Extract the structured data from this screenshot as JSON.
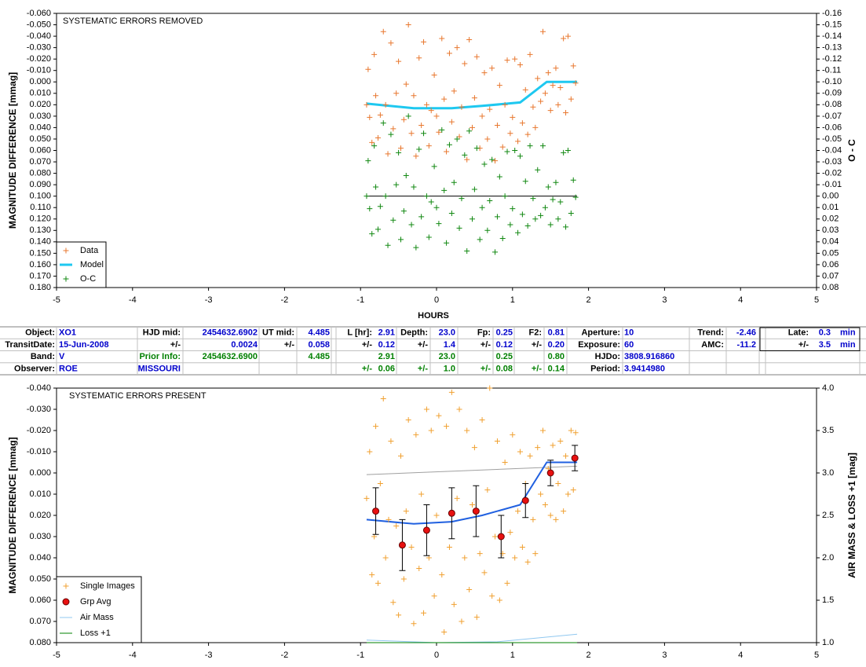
{
  "chart_data": [
    {
      "type": "scatter",
      "title": "SYSTEMATIC ERRORS REMOVED",
      "xlabel": "HOURS",
      "ylabel": "MAGNITUDE DIFFERENCE [mmag]",
      "y2label": "O - C",
      "xlim": [
        -5,
        5
      ],
      "xticks": [
        -5,
        -4,
        -3,
        -2,
        -1,
        0,
        1,
        2,
        3,
        4,
        5
      ],
      "ylim": [
        -0.06,
        0.18
      ],
      "y_reversed": true,
      "yticks": [
        {
          "value": -0.06,
          "label": "-0.060"
        },
        {
          "value": -0.05,
          "label": "-0.050"
        },
        {
          "value": -0.04,
          "label": "-0.040"
        },
        {
          "value": -0.03,
          "label": "-0.030"
        },
        {
          "value": -0.02,
          "label": "-0.020"
        },
        {
          "value": -0.01,
          "label": "-0.010"
        },
        {
          "value": 0,
          "label": "0.000"
        },
        {
          "value": 0.01,
          "label": "0.010"
        },
        {
          "value": 0.02,
          "label": "0.020"
        },
        {
          "value": 0.03,
          "label": "0.030"
        },
        {
          "value": 0.04,
          "label": "0.040"
        },
        {
          "value": 0.05,
          "label": "0.050"
        },
        {
          "value": 0.06,
          "label": "0.060"
        },
        {
          "value": 0.07,
          "label": "0.070"
        },
        {
          "value": 0.08,
          "label": "0.080"
        },
        {
          "value": 0.09,
          "label": "0.090"
        },
        {
          "value": 0.1,
          "label": "0.100"
        },
        {
          "value": 0.11,
          "label": "0.110"
        },
        {
          "value": 0.12,
          "label": "0.120"
        },
        {
          "value": 0.13,
          "label": "0.130"
        },
        {
          "value": 0.14,
          "label": "0.140"
        },
        {
          "value": 0.15,
          "label": "0.150"
        },
        {
          "value": 0.16,
          "label": "0.160"
        },
        {
          "value": 0.17,
          "label": "0.170"
        },
        {
          "value": 0.18,
          "label": "0.180"
        }
      ],
      "y2lim": [
        -0.16,
        0.08
      ],
      "y2_reversed": true,
      "y2ticks": [
        -0.16,
        -0.15,
        -0.14,
        -0.13,
        -0.12,
        -0.11,
        {
          "value": -0.1,
          "label": "-0.10"
        },
        -0.09,
        -0.08,
        -0.07,
        -0.06,
        -0.05,
        -0.04,
        -0.03,
        -0.02,
        -0.01,
        {
          "value": 0,
          "label": "0.00"
        },
        0.01,
        0.02,
        0.03,
        0.04,
        0.05,
        0.06,
        0.07,
        0.08
      ],
      "grid": false,
      "legend": "lower left",
      "series": [
        {
          "name": "Data",
          "color": "#e8772e",
          "marker": "plus",
          "x": [
            -0.92,
            -0.9,
            -0.88,
            -0.85,
            -0.82,
            -0.8,
            -0.77,
            -0.74,
            -0.7,
            -0.67,
            -0.64,
            -0.6,
            -0.57,
            -0.53,
            -0.5,
            -0.47,
            -0.43,
            -0.4,
            -0.37,
            -0.33,
            -0.3,
            -0.27,
            -0.23,
            -0.2,
            -0.17,
            -0.13,
            -0.1,
            -0.07,
            -0.03,
            0.0,
            0.03,
            0.07,
            0.1,
            0.13,
            0.17,
            0.2,
            0.23,
            0.27,
            0.3,
            0.33,
            0.37,
            0.4,
            0.43,
            0.47,
            0.5,
            0.53,
            0.57,
            0.6,
            0.63,
            0.67,
            0.7,
            0.73,
            0.77,
            0.8,
            0.83,
            0.87,
            0.9,
            0.93,
            0.97,
            1.0,
            1.03,
            1.07,
            1.1,
            1.13,
            1.17,
            1.2,
            1.23,
            1.27,
            1.3,
            1.33,
            1.37,
            1.4,
            1.43,
            1.47,
            1.5,
            1.53,
            1.57,
            1.6,
            1.63,
            1.67,
            1.7,
            1.73,
            1.77,
            1.8,
            1.83
          ],
          "values": [
            0.02,
            -0.011,
            0.031,
            0.053,
            -0.024,
            0.012,
            0.049,
            0.029,
            -0.044,
            0.02,
            0.063,
            -0.034,
            0.041,
            0.01,
            -0.018,
            0.058,
            0.033,
            0.002,
            -0.05,
            0.045,
            0.012,
            0.065,
            -0.021,
            0.038,
            -0.035,
            0.02,
            0.056,
            0.025,
            -0.006,
            0.03,
            0.044,
            -0.038,
            0.015,
            0.061,
            -0.025,
            0.035,
            0.008,
            -0.03,
            0.048,
            0.022,
            -0.016,
            0.068,
            -0.037,
            0.04,
            0.014,
            -0.022,
            0.058,
            0.03,
            -0.008,
            0.05,
            0.024,
            -0.012,
            0.069,
            0.038,
            0.003,
            0.057,
            0.02,
            -0.019,
            0.045,
            0.031,
            -0.02,
            0.052,
            -0.015,
            0.036,
            0.007,
            0.046,
            -0.024,
            0.022,
            0.04,
            -0.003,
            0.017,
            -0.044,
            0.01,
            -0.008,
            0.025,
            0.003,
            -0.012,
            0.02,
            0.005,
            -0.038,
            0.027,
            -0.04,
            0.015,
            -0.014,
            0.001
          ]
        },
        {
          "name": "Model",
          "color": "#1ec8f0",
          "marker": "line",
          "width": 3,
          "x": [
            -0.92,
            -0.3,
            0.2,
            0.6,
            1.1,
            1.45,
            1.85
          ],
          "values": [
            0.019,
            0.023,
            0.023,
            0.021,
            0.018,
            0.0,
            0.0
          ]
        },
        {
          "name": "O-C",
          "color": "#118811",
          "marker": "plus",
          "axis": "y2",
          "x": [
            -0.92,
            -0.9,
            -0.88,
            -0.85,
            -0.82,
            -0.8,
            -0.77,
            -0.74,
            -0.7,
            -0.67,
            -0.64,
            -0.6,
            -0.57,
            -0.53,
            -0.5,
            -0.47,
            -0.43,
            -0.4,
            -0.37,
            -0.33,
            -0.3,
            -0.27,
            -0.23,
            -0.2,
            -0.17,
            -0.13,
            -0.1,
            -0.07,
            -0.03,
            0.0,
            0.03,
            0.07,
            0.1,
            0.13,
            0.17,
            0.2,
            0.23,
            0.27,
            0.3,
            0.33,
            0.37,
            0.4,
            0.43,
            0.47,
            0.5,
            0.53,
            0.57,
            0.6,
            0.63,
            0.67,
            0.7,
            0.73,
            0.77,
            0.8,
            0.83,
            0.87,
            0.9,
            0.93,
            0.97,
            1.0,
            1.03,
            1.07,
            1.1,
            1.13,
            1.17,
            1.2,
            1.23,
            1.27,
            1.3,
            1.33,
            1.37,
            1.4,
            1.43,
            1.47,
            1.5,
            1.53,
            1.57,
            1.6,
            1.63,
            1.67,
            1.7,
            1.73,
            1.77,
            1.8,
            1.83
          ],
          "values": [
            0.0,
            -0.031,
            0.011,
            0.033,
            -0.044,
            -0.008,
            0.029,
            0.009,
            -0.064,
            0.0,
            0.043,
            -0.054,
            0.021,
            -0.01,
            -0.038,
            0.038,
            0.013,
            -0.018,
            -0.07,
            0.025,
            -0.008,
            0.045,
            -0.041,
            0.018,
            -0.055,
            0.0,
            0.036,
            0.005,
            -0.026,
            0.01,
            0.024,
            -0.058,
            -0.005,
            0.041,
            -0.045,
            0.015,
            -0.012,
            -0.05,
            0.028,
            0.002,
            -0.036,
            0.048,
            -0.057,
            0.02,
            -0.006,
            -0.042,
            0.038,
            0.01,
            -0.028,
            0.03,
            0.004,
            -0.032,
            0.049,
            0.018,
            -0.017,
            0.037,
            0.0,
            -0.039,
            0.025,
            0.011,
            -0.04,
            0.032,
            -0.035,
            0.016,
            -0.013,
            0.026,
            -0.044,
            0.002,
            0.02,
            -0.023,
            0.017,
            -0.044,
            0.01,
            -0.008,
            0.025,
            0.003,
            -0.012,
            0.02,
            0.005,
            -0.038,
            0.027,
            -0.04,
            0.015,
            -0.014,
            0.001
          ]
        },
        {
          "color": "#000000",
          "marker": "line",
          "width": 1,
          "axis": "y2",
          "x": [
            -0.92,
            1.85
          ],
          "values": [
            0,
            0
          ]
        }
      ]
    },
    {
      "type": "scatter",
      "title": "SYSTEMATIC ERRORS PRESENT",
      "ylabel": "MAGNITUDE DIFFERENCE [mmag]",
      "y2label": "AIR MASS & LOSS +1 [mag]",
      "xlim": [
        -5,
        5
      ],
      "xticks": [
        -5,
        -4,
        -3,
        -2,
        -1,
        0,
        1,
        2,
        3,
        4,
        5
      ],
      "ylim": [
        -0.04,
        0.08
      ],
      "y_reversed": true,
      "yticks": [
        {
          "value": -0.04,
          "label": "-0.040"
        },
        {
          "value": -0.03,
          "label": "-0.030"
        },
        {
          "value": -0.02,
          "label": "-0.020"
        },
        {
          "value": -0.01,
          "label": "-0.010"
        },
        {
          "value": 0,
          "label": "0.000"
        },
        {
          "value": 0.01,
          "label": "0.010"
        },
        {
          "value": 0.02,
          "label": "0.020"
        },
        {
          "value": 0.03,
          "label": "0.030"
        },
        {
          "value": 0.04,
          "label": "0.040"
        },
        {
          "value": 0.05,
          "label": "0.050"
        },
        {
          "value": 0.06,
          "label": "0.060"
        },
        {
          "value": 0.07,
          "label": "0.070"
        },
        {
          "value": 0.08,
          "label": "0.080"
        }
      ],
      "y2lim": [
        1.0,
        4.0
      ],
      "y2_reversed": false,
      "y2ticks": [
        {
          "value": 1,
          "label": "1.0"
        },
        1.5,
        {
          "value": 2,
          "label": "2.0"
        },
        2.5,
        {
          "value": 3,
          "label": "3.0"
        },
        3.5,
        {
          "value": 4,
          "label": "4.0"
        }
      ],
      "grid": false,
      "legend": "lower left",
      "series": [
        {
          "name": "Single Images",
          "color": "#f0a030",
          "marker": "plus",
          "x": [
            -0.92,
            -0.88,
            -0.85,
            -0.82,
            -0.8,
            -0.77,
            -0.74,
            -0.7,
            -0.67,
            -0.63,
            -0.6,
            -0.57,
            -0.53,
            -0.5,
            -0.47,
            -0.43,
            -0.4,
            -0.37,
            -0.33,
            -0.3,
            -0.27,
            -0.23,
            -0.2,
            -0.17,
            -0.13,
            -0.1,
            -0.07,
            -0.03,
            0.0,
            0.03,
            0.07,
            0.1,
            0.13,
            0.17,
            0.2,
            0.23,
            0.27,
            0.3,
            0.33,
            0.37,
            0.4,
            0.43,
            0.47,
            0.5,
            0.53,
            0.57,
            0.6,
            0.63,
            0.67,
            0.7,
            0.73,
            0.77,
            0.8,
            0.83,
            0.87,
            0.9,
            0.93,
            0.97,
            1.0,
            1.03,
            1.07,
            1.1,
            1.13,
            1.17,
            1.2,
            1.23,
            1.27,
            1.3,
            1.33,
            1.37,
            1.4,
            1.43,
            1.47,
            1.5,
            1.53,
            1.57,
            1.6,
            1.63,
            1.67,
            1.7,
            1.73,
            1.77,
            1.8,
            1.83
          ],
          "values": [
            0.012,
            -0.01,
            0.048,
            0.03,
            -0.022,
            0.052,
            0.005,
            -0.035,
            0.04,
            0.022,
            -0.015,
            0.061,
            0.025,
            0.067,
            -0.008,
            0.05,
            0.018,
            -0.025,
            0.035,
            0.071,
            -0.018,
            0.045,
            0.01,
            0.066,
            -0.03,
            0.04,
            -0.02,
            0.058,
            0.02,
            -0.027,
            0.048,
            0.075,
            -0.022,
            0.035,
            -0.038,
            0.062,
            0.012,
            -0.03,
            0.07,
            0.04,
            -0.02,
            0.055,
            0.015,
            -0.012,
            0.068,
            0.038,
            -0.025,
            0.047,
            0.008,
            -0.04,
            0.058,
            0.03,
            -0.015,
            0.06,
            0.038,
            -0.005,
            0.052,
            0.028,
            -0.018,
            0.04,
            0.018,
            -0.01,
            0.035,
            0.005,
            0.042,
            -0.008,
            0.022,
            0.038,
            -0.012,
            0.01,
            -0.02,
            0.015,
            -0.002,
            0.02,
            -0.013,
            0.022,
            0.005,
            -0.015,
            0.018,
            -0.008,
            0.01,
            -0.02,
            0.008,
            -0.019
          ]
        },
        {
          "name": "Grp Avg",
          "color": "#e81010",
          "marker": "circle",
          "x": [
            -0.8,
            -0.45,
            -0.13,
            0.2,
            0.52,
            0.85,
            1.17,
            1.5,
            1.82
          ],
          "values": [
            0.018,
            0.034,
            0.027,
            0.019,
            0.018,
            0.03,
            0.013,
            0.0,
            -0.007
          ],
          "error": [
            0.011,
            0.012,
            0.012,
            0.012,
            0.012,
            0.01,
            0.008,
            0.006,
            0.006
          ]
        },
        {
          "name": "Air Mass",
          "color": "#90c8f0",
          "marker": "line",
          "width": 1,
          "axis": "y2",
          "x": [
            -0.92,
            0.0,
            0.8,
            1.85
          ],
          "values": [
            1.03,
            1.0,
            1.01,
            1.1
          ]
        },
        {
          "name": "Loss +1",
          "color": "#008000",
          "marker": "line",
          "width": 1,
          "axis": "y2",
          "x": [
            -0.92,
            1.85
          ],
          "values": [
            1.0,
            1.0
          ]
        },
        {
          "color": "#a0a0a0",
          "marker": "line",
          "width": 1,
          "axis": "y2",
          "x": [
            -0.92,
            1.85
          ],
          "values": [
            2.98,
            3.08
          ]
        },
        {
          "color": "#2060e0",
          "marker": "line",
          "width": 2,
          "x": [
            -0.92,
            -0.3,
            0.2,
            0.6,
            1.1,
            1.45,
            1.85
          ],
          "values": [
            0.022,
            0.024,
            0.023,
            0.02,
            0.015,
            -0.005,
            -0.005
          ]
        }
      ]
    }
  ],
  "table": {
    "rows": [
      [
        "Object:",
        "XO1",
        "HJD mid:",
        "2454632.6902",
        "UT mid:",
        "4.485",
        "L [hr]:",
        "2.91",
        "Depth:",
        "23.0",
        "Fp:",
        "0.25",
        "F2:",
        "0.81",
        "Aperture:",
        "10",
        "Trend:",
        "-2.46",
        "Late:",
        "0.3",
        "min"
      ],
      [
        "TransitDate:",
        "15-Jun-2008",
        "+/-",
        "0.0024",
        "+/-",
        "0.058",
        "+/-",
        "0.12",
        "+/-",
        "1.4",
        "+/-",
        "0.12",
        "+/-",
        "0.20",
        "Exposure:",
        "60",
        "AMC:",
        "-11.2",
        "+/-",
        "3.5",
        "min"
      ],
      [
        "Band:",
        "V",
        "Prior Info:",
        "2454632.6900",
        null,
        "4.485",
        null,
        "2.91",
        null,
        "23.0",
        null,
        "0.25",
        null,
        "0.80",
        "HJDo:",
        "3808.916860",
        null,
        null,
        null,
        null,
        null
      ],
      [
        "Observer:",
        "ROE",
        "MISSOURI",
        null,
        null,
        null,
        "+/-",
        "0.06",
        "+/-",
        "1.0",
        "+/-",
        "0.08",
        "+/-",
        "0.14",
        "Period:",
        "3.9414980",
        null,
        null,
        null,
        null,
        null
      ]
    ]
  }
}
